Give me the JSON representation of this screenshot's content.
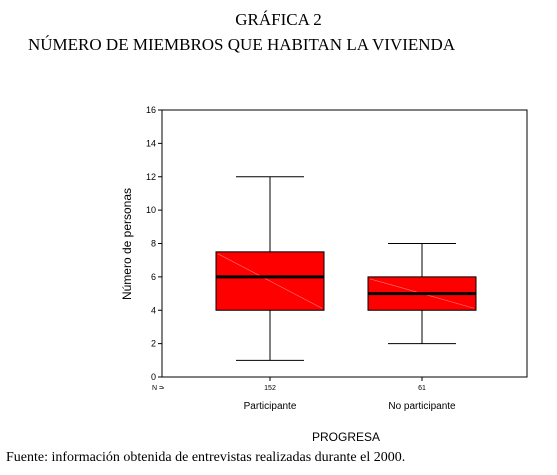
{
  "header": {
    "title_line1": "GRÁFICA 2",
    "title_line2": "NÚMERO DE MIEMBROS QUE HABITAN LA VIVIENDA"
  },
  "footer": {
    "source": "Fuente: información obtenida de entrevistas realizadas durante el 2000."
  },
  "chart_data": {
    "type": "boxplot",
    "ylabel": "Número de personas",
    "xlabel": "PROGRESA",
    "ylim": [
      0,
      16
    ],
    "yticks": [
      0,
      2,
      4,
      6,
      8,
      10,
      12,
      14,
      16
    ],
    "n_label": "N =",
    "grid": false,
    "box_color": "#ff0000",
    "categories": [
      "Participante",
      "No participante"
    ],
    "boxes": [
      {
        "category": "Participante",
        "n": "152",
        "min": 1,
        "q1": 4,
        "median": 6,
        "q3": 7.5,
        "max": 12
      },
      {
        "category": "No participante",
        "n": "61",
        "min": 2,
        "q1": 4,
        "median": 5,
        "q3": 6,
        "max": 8
      }
    ]
  }
}
